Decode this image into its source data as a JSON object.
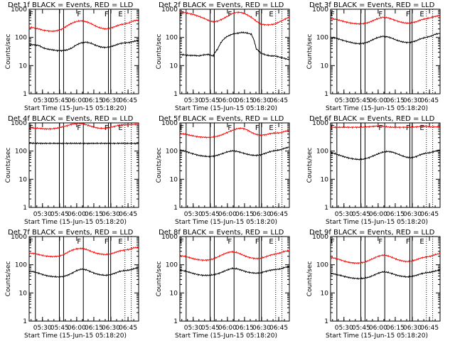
{
  "chart_data": {
    "type": "line",
    "panels": [
      {
        "title": "Det 1f BLACK = Events, RED = LLD",
        "events": [
          55,
          55,
          52,
          42,
          38,
          36,
          34,
          34,
          36,
          42,
          55,
          65,
          68,
          62,
          52,
          46,
          44,
          46,
          52,
          60,
          64,
          66,
          72,
          80
        ],
        "lld": [
          230,
          220,
          200,
          180,
          170,
          165,
          175,
          200,
          260,
          320,
          370,
          390,
          360,
          310,
          250,
          215,
          200,
          210,
          240,
          280,
          300,
          330,
          390,
          420
        ]
      },
      {
        "title": "Det 2f BLACK = Events, RED = LLD",
        "events": [
          25,
          24,
          23,
          23,
          22,
          24,
          25,
          22,
          40,
          80,
          110,
          130,
          140,
          150,
          145,
          130,
          40,
          28,
          24,
          22,
          22,
          20,
          18,
          16
        ],
        "lld": [
          800,
          760,
          700,
          640,
          560,
          480,
          400,
          360,
          380,
          450,
          560,
          700,
          780,
          760,
          650,
          520,
          380,
          300,
          280,
          280,
          300,
          360,
          440,
          520
        ]
      },
      {
        "title": "Det 3f BLACK = Events, RED = LLD",
        "events": [
          100,
          95,
          85,
          75,
          68,
          62,
          60,
          62,
          70,
          85,
          100,
          110,
          105,
          92,
          78,
          70,
          66,
          68,
          76,
          90,
          100,
          110,
          130,
          140
        ],
        "lld": [
          460,
          440,
          400,
          360,
          330,
          310,
          300,
          310,
          340,
          400,
          470,
          520,
          500,
          440,
          380,
          340,
          320,
          330,
          360,
          420,
          460,
          500,
          560,
          600
        ]
      },
      {
        "title": "Det 4f BLACK = Events, RED = LLD",
        "events": [
          190,
          190,
          190,
          188,
          188,
          188,
          188,
          188,
          188,
          188,
          188,
          188,
          188,
          188,
          188,
          188,
          188,
          188,
          188,
          188,
          188,
          188,
          188,
          185
        ],
        "lld": [
          680,
          660,
          640,
          620,
          610,
          620,
          660,
          720,
          800,
          900,
          960,
          940,
          860,
          760,
          680,
          640,
          640,
          680,
          760,
          840,
          860,
          860,
          880,
          900
        ]
      },
      {
        "title": "Det 5f BLACK = Events, RED = LLD",
        "events": [
          110,
          100,
          88,
          78,
          70,
          66,
          64,
          66,
          72,
          82,
          94,
          102,
          98,
          88,
          78,
          72,
          70,
          74,
          84,
          96,
          104,
          110,
          126,
          140
        ],
        "lld": [
          420,
          400,
          370,
          340,
          320,
          310,
          305,
          315,
          340,
          390,
          460,
          540,
          620,
          650,
          580,
          460,
          390,
          370,
          380,
          420,
          440,
          440,
          500,
          540
        ]
      },
      {
        "title": "Det 6f BLACK = Events, RED = LLD",
        "events": [
          90,
          80,
          70,
          62,
          56,
          52,
          50,
          52,
          58,
          68,
          80,
          92,
          98,
          92,
          80,
          68,
          60,
          58,
          64,
          76,
          84,
          88,
          100,
          110
        ],
        "lld": [
          700,
          700,
          700,
          700,
          700,
          700,
          700,
          710,
          730,
          760,
          780,
          760,
          720,
          700,
          700,
          700,
          700,
          700,
          720,
          760,
          760,
          720,
          720,
          740
        ]
      },
      {
        "title": "Det 7f BLACK = Events, RED = LLD",
        "events": [
          60,
          56,
          50,
          44,
          40,
          38,
          37,
          38,
          42,
          50,
          62,
          70,
          66,
          56,
          48,
          44,
          42,
          44,
          50,
          58,
          62,
          64,
          72,
          80
        ],
        "lld": [
          260,
          250,
          230,
          210,
          200,
          195,
          200,
          220,
          270,
          330,
          370,
          380,
          350,
          300,
          260,
          240,
          230,
          240,
          270,
          310,
          330,
          350,
          400,
          420
        ]
      },
      {
        "title": "Det 8f BLACK = Events, RED = LLD",
        "events": [
          65,
          60,
          54,
          48,
          44,
          42,
          42,
          44,
          48,
          56,
          66,
          74,
          72,
          64,
          56,
          52,
          50,
          52,
          58,
          64,
          68,
          70,
          80,
          88
        ],
        "lld": [
          210,
          200,
          180,
          160,
          150,
          145,
          148,
          160,
          190,
          230,
          270,
          290,
          270,
          230,
          195,
          175,
          165,
          170,
          190,
          220,
          240,
          260,
          300,
          320
        ]
      },
      {
        "title": "Det 9f BLACK = Events, RED = LLD",
        "events": [
          50,
          46,
          42,
          38,
          35,
          33,
          32,
          33,
          36,
          42,
          50,
          56,
          54,
          48,
          42,
          39,
          37,
          38,
          42,
          48,
          52,
          54,
          60,
          66
        ],
        "lld": [
          180,
          170,
          150,
          132,
          120,
          115,
          115,
          122,
          140,
          168,
          200,
          220,
          208,
          180,
          152,
          138,
          130,
          134,
          150,
          174,
          188,
          200,
          230,
          250
        ]
      }
    ],
    "xlabel": "Start Time (15-Jun-15 05:18:20)",
    "ylabel": "Counts/sec",
    "x_ticks": [
      "05:30",
      "05:45",
      "06:00",
      "06:15",
      "06:30",
      "06:45"
    ],
    "y_ticks": [
      "1",
      "10",
      "100",
      "1000"
    ],
    "ylim": [
      1,
      1000
    ],
    "xlim_minutes": [
      0,
      96
    ],
    "x_tick_minutes": [
      11.7,
      26.7,
      41.7,
      56.7,
      71.7,
      86.7
    ],
    "y_scale": "log",
    "markers": [
      {
        "label": "F",
        "minute": 5.5,
        "style": "solid"
      },
      {
        "label": "",
        "minute": 26.5,
        "style": "solid"
      },
      {
        "label": "",
        "minute": 30.2,
        "style": "solid"
      },
      {
        "label": "F",
        "minute": 47.5,
        "style": "solid"
      },
      {
        "label": "",
        "minute": 69.5,
        "style": "solid"
      },
      {
        "label": "F",
        "minute": 71.5,
        "style": "solid"
      },
      {
        "label": "E",
        "minute": 84.0,
        "style": "dotted"
      },
      {
        "label": "",
        "minute": 89.5,
        "style": "dotted"
      }
    ],
    "colors": {
      "events": "#000000",
      "lld": "#ff0000",
      "markers": "#000000"
    }
  }
}
